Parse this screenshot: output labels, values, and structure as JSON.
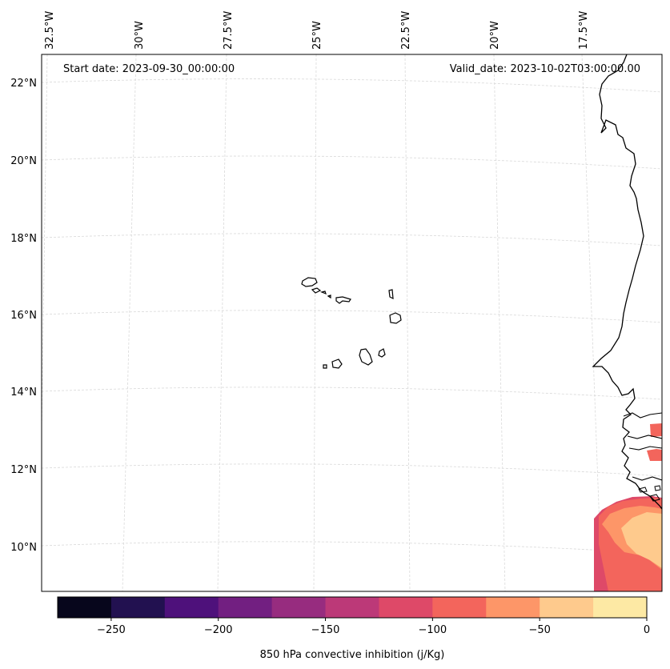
{
  "map": {
    "start_date": "Start date: 2023-09-30_00:00:00",
    "valid_date": "Valid_date: 2023-10-02T03:00:00.00",
    "lon_labels": [
      "32.5°W",
      "30°W",
      "27.5°W",
      "25°W",
      "22.5°W",
      "20°W",
      "17.5°W"
    ],
    "lat_labels": [
      "22°N",
      "20°N",
      "18°N",
      "16°N",
      "14°N",
      "12°N",
      "10°N"
    ],
    "gridline_color": "#d9d9d9",
    "coastline_color": "#000000"
  },
  "colorbar": {
    "label": "850 hPa convective inhibition (j/Kg)",
    "tick_labels": [
      "−250",
      "−200",
      "−150",
      "−100",
      "−50",
      "0"
    ],
    "range": [
      -275,
      0
    ],
    "colors": [
      "#07061c",
      "#221150",
      "#4e117b",
      "#721f81",
      "#972c7f",
      "#bc3978",
      "#de4968",
      "#f3655c",
      "#fd9668",
      "#feca8d",
      "#fde9a4"
    ]
  },
  "field": {
    "levels": [
      -100,
      -75,
      -50,
      -25
    ],
    "colors": [
      "#de4968",
      "#f3655c",
      "#fd9668",
      "#feca8d"
    ]
  }
}
